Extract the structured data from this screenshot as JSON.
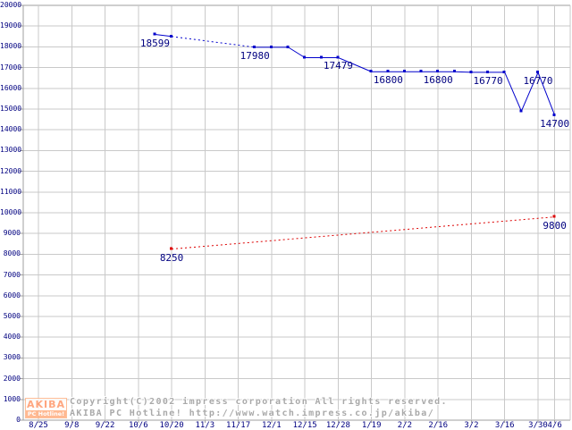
{
  "page": {
    "background": "#ffffff"
  },
  "watermark": {
    "copyright_line1": "Copyright(C)2002 impress corporation All rights reserved.",
    "copyright_line2": "AKIBA PC Hotline!  http://www.watch.impress.co.jp/akiba/",
    "logo": {
      "top_text": "AKIBA",
      "bottom_text": "PC Hotline!"
    }
  },
  "colors": {
    "gridline": "#c9c9c9",
    "axis": "#9f9f9f",
    "axis_label": "#000080",
    "blue_series": "#0000cc",
    "red_series": "#dd0000",
    "watermark_text": "#a9a9a9",
    "logo_orange": "#ffa878"
  },
  "chart_data": {
    "type": "line",
    "title": "",
    "grid": true,
    "legend": "none",
    "ylim": [
      0,
      20000
    ],
    "y_tick_step": 1000,
    "x_tick_labels": [
      "8/25",
      "9/8",
      "9/22",
      "10/6",
      "10/20",
      "11/3",
      "11/17",
      "12/1",
      "12/15",
      "12/28",
      "1/19",
      "2/2",
      "2/16",
      "3/2",
      "3/16",
      "3/30",
      "4/6"
    ],
    "x_tick_days": [
      0,
      14,
      28,
      42,
      56,
      70,
      84,
      98,
      112,
      126,
      140,
      154,
      168,
      182,
      196,
      210,
      217
    ],
    "x_total_days": 217,
    "series": [
      {
        "name": "blue-price",
        "color": "#0000cc",
        "line_style": "solid_with_gap",
        "marker": "square",
        "points": [
          {
            "date": "10/13",
            "t": 49,
            "v": 18599,
            "label": "18599"
          },
          {
            "date": "10/20",
            "t": 56,
            "v": 18500
          },
          {
            "date": "11/24",
            "t": 91,
            "v": 17980,
            "label": "17980",
            "gap_before": true
          },
          {
            "date": "12/1",
            "t": 98,
            "v": 17980
          },
          {
            "date": "12/8",
            "t": 105,
            "v": 17980
          },
          {
            "date": "12/15",
            "t": 112,
            "v": 17479
          },
          {
            "date": "12/22",
            "t": 119,
            "v": 17479
          },
          {
            "date": "12/28",
            "t": 126,
            "v": 17479,
            "label": "17479"
          },
          {
            "date": "1/19",
            "t": 140,
            "v": 16800
          },
          {
            "date": "1/26",
            "t": 147,
            "v": 16800,
            "label": "16800"
          },
          {
            "date": "2/2",
            "t": 154,
            "v": 16800
          },
          {
            "date": "2/9",
            "t": 161,
            "v": 16800
          },
          {
            "date": "2/16",
            "t": 168,
            "v": 16800,
            "label": "16800"
          },
          {
            "date": "2/23",
            "t": 175,
            "v": 16800
          },
          {
            "date": "3/2",
            "t": 182,
            "v": 16770
          },
          {
            "date": "3/9",
            "t": 189,
            "v": 16770,
            "label": "16770"
          },
          {
            "date": "3/16",
            "t": 196,
            "v": 16770
          },
          {
            "date": "3/23",
            "t": 203,
            "v": 14900
          },
          {
            "date": "3/30",
            "t": 210,
            "v": 16770,
            "label": "16770"
          },
          {
            "date": "4/6",
            "t": 217,
            "v": 14700,
            "label": "14700"
          }
        ]
      },
      {
        "name": "red-price",
        "color": "#dd0000",
        "line_style": "dotted",
        "marker": "square",
        "points": [
          {
            "date": "10/20",
            "t": 56,
            "v": 8250,
            "label": "8250"
          },
          {
            "date": "4/6",
            "t": 217,
            "v": 9800,
            "label": "9800"
          }
        ]
      }
    ]
  }
}
